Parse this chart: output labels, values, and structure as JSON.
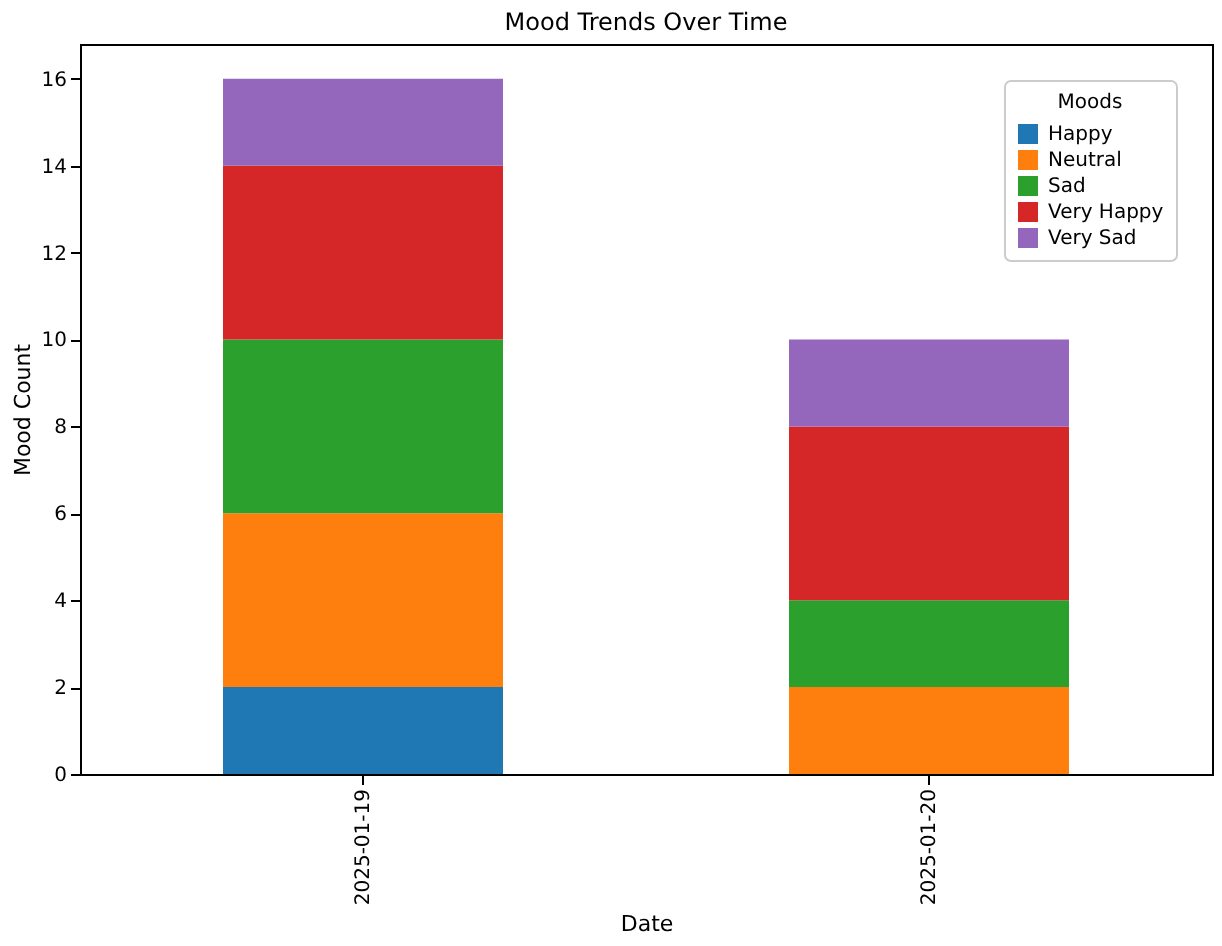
{
  "chart_data": {
    "type": "bar",
    "title": "Mood Trends Over Time",
    "xlabel": "Date",
    "ylabel": "Mood Count",
    "legend_title": "Moods",
    "categories": [
      "2025-01-19",
      "2025-01-20"
    ],
    "stacked": true,
    "series": [
      {
        "name": "Happy",
        "color": "#1f77b4",
        "values": [
          2,
          0
        ]
      },
      {
        "name": "Neutral",
        "color": "#ff7f0e",
        "values": [
          4,
          2
        ]
      },
      {
        "name": "Sad",
        "color": "#2ca02c",
        "values": [
          4,
          2
        ]
      },
      {
        "name": "Very Happy",
        "color": "#d62728",
        "values": [
          4,
          4
        ]
      },
      {
        "name": "Very Sad",
        "color": "#9467bd",
        "values": [
          2,
          2
        ]
      }
    ],
    "ylim": [
      0,
      16.8
    ],
    "yticks": [
      0,
      2,
      4,
      6,
      8,
      10,
      12,
      14,
      16
    ],
    "grid": false,
    "legend": "top right"
  }
}
